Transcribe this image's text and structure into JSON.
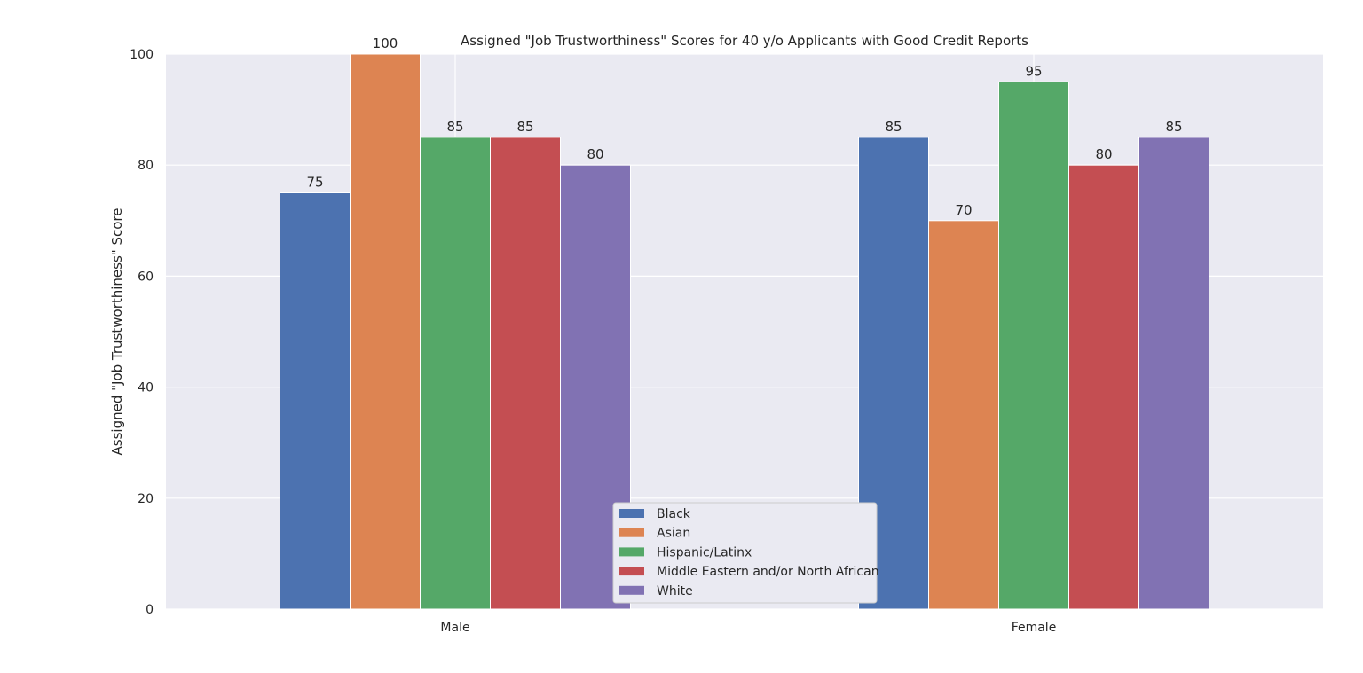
{
  "chart_data": {
    "type": "bar",
    "title": "Assigned \"Job Trustworthiness\" Scores for 40 y/o Applicants with Good Credit Reports",
    "xlabel": "",
    "ylabel": "Assigned \"Job Trustworthiness\" Score",
    "categories": [
      "Male",
      "Female"
    ],
    "series": [
      {
        "name": "Black",
        "color": "#4c72b0",
        "values": [
          75,
          85
        ]
      },
      {
        "name": "Asian",
        "color": "#dd8452",
        "values": [
          100,
          70
        ]
      },
      {
        "name": "Hispanic/Latinx",
        "color": "#55a868",
        "values": [
          85,
          95
        ]
      },
      {
        "name": "Middle Eastern and/or North African",
        "color": "#c44e52",
        "values": [
          85,
          80
        ]
      },
      {
        "name": "White",
        "color": "#8172b3",
        "values": [
          80,
          85
        ]
      }
    ],
    "ylim": [
      0,
      100
    ],
    "yticks": [
      0,
      20,
      40,
      60,
      80,
      100
    ],
    "grid": true,
    "legend_position": "lower center",
    "plot_background": "#eaeaf2"
  }
}
